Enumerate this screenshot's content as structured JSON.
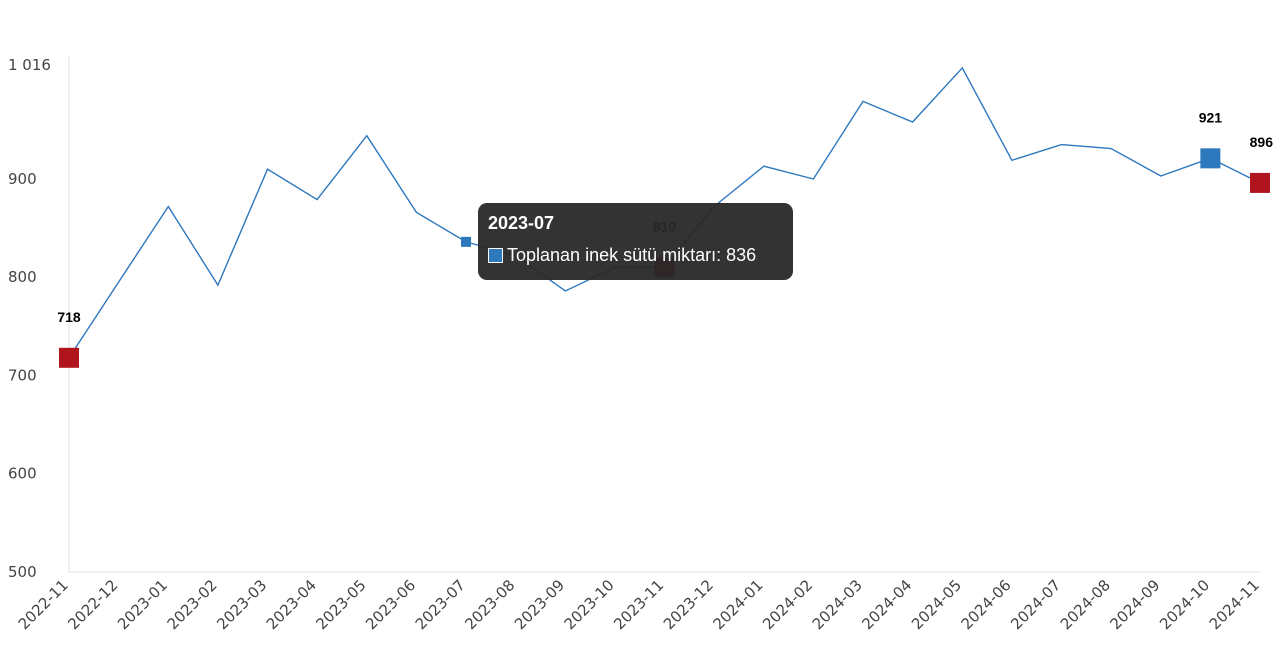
{
  "chart_data": {
    "type": "line",
    "categories": [
      "2022-11",
      "2022-12",
      "2023-01",
      "2023-02",
      "2023-03",
      "2023-04",
      "2023-05",
      "2023-06",
      "2023-07",
      "2023-08",
      "2023-09",
      "2023-10",
      "2023-11",
      "2023-12",
      "2024-01",
      "2024-02",
      "2024-03",
      "2024-04",
      "2024-05",
      "2024-06",
      "2024-07",
      "2024-08",
      "2024-09",
      "2024-10",
      "2024-11"
    ],
    "series": [
      {
        "name": "Toplanan inek sütü miktarı",
        "color": "#2e78bd",
        "values": [
          718,
          795,
          872,
          792,
          910,
          879,
          944,
          866,
          836,
          822,
          786,
          810,
          810,
          872,
          913,
          900,
          979,
          958,
          1013,
          919,
          935,
          931,
          903,
          921,
          896
        ]
      }
    ],
    "yticks": [
      500,
      600,
      700,
      800,
      900,
      1016
    ],
    "ytick_labels": [
      "500",
      "600",
      "700",
      "800",
      "900",
      "1 016"
    ],
    "ylim": [
      500,
      1016
    ],
    "grid": false,
    "highlight_color": "#b0151e",
    "labeled_points": [
      {
        "category": "2022-11",
        "label": "718",
        "color": "#b0151e"
      },
      {
        "category": "2023-11",
        "label": "810",
        "color": "#b0151e"
      },
      {
        "category": "2024-10",
        "label": "921",
        "color": "#2e78bd"
      },
      {
        "category": "2024-11",
        "label": "896",
        "color": "#b0151e"
      }
    ],
    "tooltip": {
      "category": "2023-07",
      "title": "2023-07",
      "text": "Toplanan inek sütü miktarı: 836"
    }
  }
}
